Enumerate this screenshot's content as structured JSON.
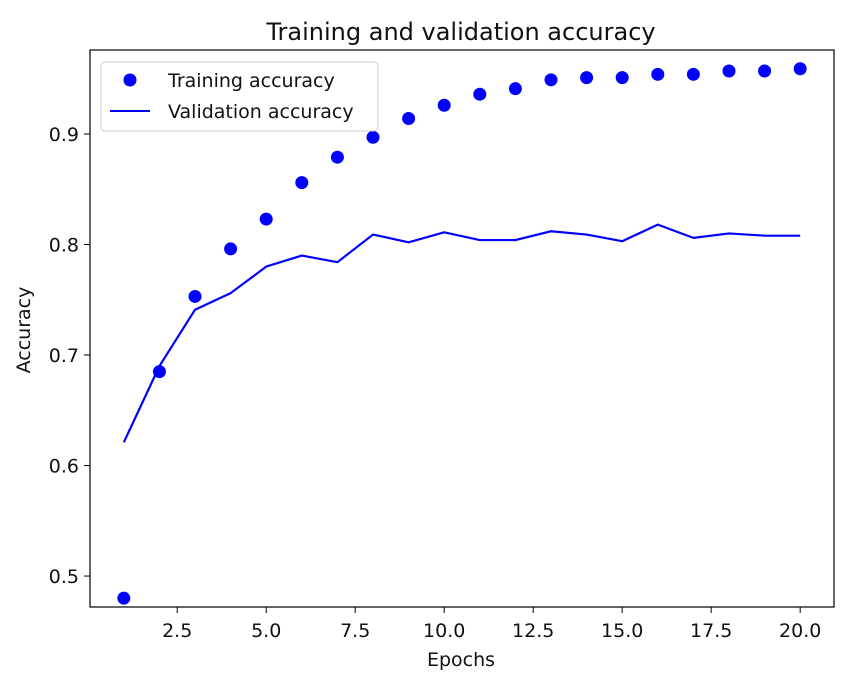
{
  "chart_data": {
    "type": "line",
    "title": "Training and validation accuracy",
    "xlabel": "Epochs",
    "ylabel": "Accuracy",
    "xlim": [
      0.05,
      20.95
    ],
    "ylim": [
      0.472,
      0.976
    ],
    "xticks": [
      2.5,
      5.0,
      7.5,
      10.0,
      12.5,
      15.0,
      17.5,
      20.0
    ],
    "xtick_labels": [
      "2.5",
      "5.0",
      "7.5",
      "10.0",
      "12.5",
      "15.0",
      "17.5",
      "20.0"
    ],
    "yticks": [
      0.5,
      0.6,
      0.7,
      0.8,
      0.9
    ],
    "ytick_labels": [
      "0.5",
      "0.6",
      "0.7",
      "0.8",
      "0.9"
    ],
    "grid": false,
    "legend_position": "upper left",
    "x": [
      1,
      2,
      3,
      4,
      5,
      6,
      7,
      8,
      9,
      10,
      11,
      12,
      13,
      14,
      15,
      16,
      17,
      18,
      19,
      20
    ],
    "series": [
      {
        "name": "Training accuracy",
        "style": "markers",
        "color": "#0000ff",
        "values": [
          0.48,
          0.685,
          0.753,
          0.796,
          0.823,
          0.856,
          0.879,
          0.897,
          0.914,
          0.926,
          0.936,
          0.941,
          0.949,
          0.951,
          0.951,
          0.954,
          0.954,
          0.957,
          0.957,
          0.959
        ]
      },
      {
        "name": "Validation accuracy",
        "style": "line",
        "color": "#0000ff",
        "values": [
          0.621,
          0.69,
          0.741,
          0.756,
          0.78,
          0.79,
          0.784,
          0.809,
          0.802,
          0.811,
          0.804,
          0.804,
          0.812,
          0.809,
          0.803,
          0.818,
          0.806,
          0.81,
          0.808,
          0.808
        ]
      }
    ]
  }
}
